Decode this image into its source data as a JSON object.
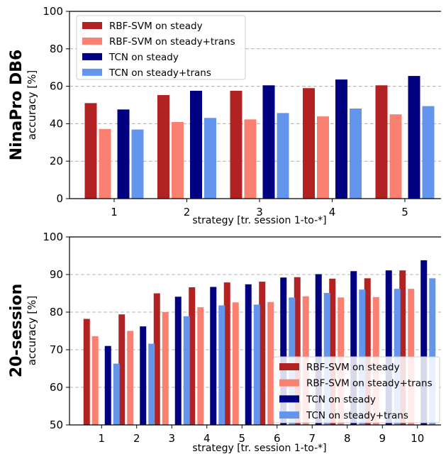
{
  "chart_data": [
    {
      "type": "bar",
      "row_title": "NinaPro DB6",
      "ylabel": "accuracy [%]",
      "xlabel": "strategy [tr. session 1-to-*]",
      "ylim": [
        0,
        100
      ],
      "yticks": [
        0,
        20,
        40,
        60,
        80,
        100
      ],
      "grid": "y dashed",
      "legend_position": "upper-left",
      "categories": [
        "1",
        "2",
        "3",
        "4",
        "5"
      ],
      "series": [
        {
          "name": "RBF-SVM on steady",
          "color": "#b22222",
          "values": [
            51.0,
            55.3,
            57.6,
            59.0,
            60.5
          ]
        },
        {
          "name": "RBF-SVM on steady+trans",
          "color": "#fa8072",
          "values": [
            37.2,
            40.9,
            42.3,
            43.9,
            45.0
          ]
        },
        {
          "name": "TCN on steady",
          "color": "#000080",
          "values": [
            47.6,
            57.6,
            60.5,
            63.6,
            65.5
          ]
        },
        {
          "name": "TCN on steady+trans",
          "color": "#6495ed",
          "values": [
            36.9,
            43.1,
            45.7,
            48.1,
            49.4
          ]
        }
      ]
    },
    {
      "type": "bar",
      "row_title": "20-session",
      "ylabel": "accuracy [%]",
      "xlabel": "strategy [tr. session 1-to-*]",
      "ylim": [
        50,
        100
      ],
      "yticks": [
        50,
        60,
        70,
        80,
        90,
        100
      ],
      "grid": "y dashed",
      "legend_position": "lower-right",
      "categories": [
        "1",
        "2",
        "3",
        "4",
        "5",
        "6",
        "7",
        "8",
        "9",
        "10"
      ],
      "series": [
        {
          "name": "RBF-SVM on steady",
          "color": "#b22222",
          "values": [
            78.2,
            79.4,
            85.0,
            86.6,
            87.9,
            88.1,
            89.3,
            88.9,
            89.0,
            91.1
          ]
        },
        {
          "name": "RBF-SVM on steady+trans",
          "color": "#fa8072",
          "values": [
            73.6,
            75.0,
            80.0,
            81.3,
            82.6,
            82.7,
            84.2,
            83.9,
            84.0,
            86.2
          ]
        },
        {
          "name": "TCN on steady",
          "color": "#000080",
          "values": [
            71.0,
            76.2,
            84.1,
            86.7,
            87.4,
            89.2,
            90.1,
            90.9,
            91.1,
            93.8
          ]
        },
        {
          "name": "TCN on steady+trans",
          "color": "#6495ed",
          "values": [
            66.3,
            71.6,
            78.9,
            81.8,
            82.0,
            83.9,
            85.1,
            86.0,
            86.2,
            89.0
          ]
        }
      ]
    }
  ]
}
